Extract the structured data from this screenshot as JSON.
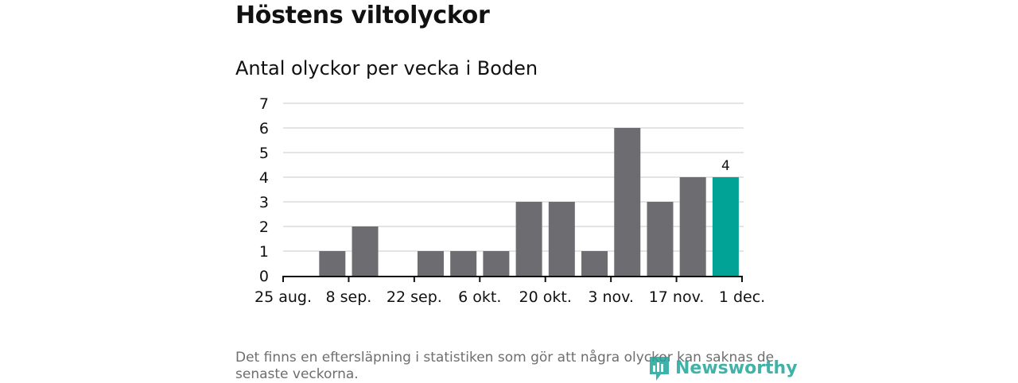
{
  "title": "Höstens viltolyckor",
  "subtitle": "Antal olyckor per vecka i Boden",
  "note": "Det finns en eftersläpning i statistiken som gör att några olyckor kan saknas de senaste veckorna.",
  "brand": {
    "name": "Newsworthy",
    "icon": "newsworthy-logo-icon",
    "color": "#1fa59a"
  },
  "colors": {
    "bar": "#6d6c71",
    "highlight": "#00a396",
    "grid": "#dcdcdc",
    "axis": "#111111"
  },
  "chart_data": {
    "type": "bar",
    "title": "Antal olyckor per vecka i Boden",
    "xlabel": "",
    "ylabel": "",
    "ylim": [
      0,
      7
    ],
    "yticks": [
      0,
      1,
      2,
      3,
      4,
      5,
      6,
      7
    ],
    "x_tick_labels": [
      "25 aug.",
      "8 sep.",
      "22 sep.",
      "6 okt.",
      "20 okt.",
      "3 nov.",
      "17 nov.",
      "1 dec."
    ],
    "grid": true,
    "legend": "none",
    "weeks": 14,
    "values": [
      0,
      1,
      2,
      0,
      1,
      1,
      1,
      3,
      3,
      1,
      6,
      3,
      4,
      4
    ],
    "highlight_index": 13,
    "data_labels": [
      {
        "index": 13,
        "text": "4"
      }
    ]
  }
}
